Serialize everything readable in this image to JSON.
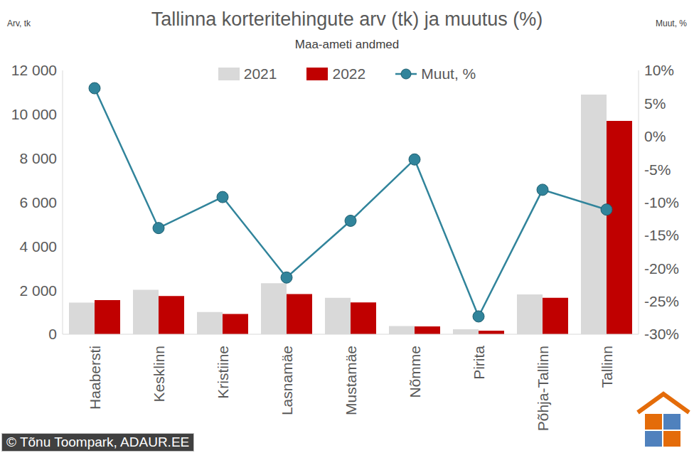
{
  "chart_data": {
    "type": "bar",
    "title": "Tallinna korteritehingute arv (tk) ja muutus (%)",
    "subtitle": "Maa-ameti andmed",
    "y_label": "Arv, tk",
    "y2_label": "Muut, %",
    "source": "© Tõnu Toompark, ADAUR.EE",
    "categories": [
      "Haabersti",
      "Kesklinn",
      "Kristiine",
      "Lasnamäe",
      "Mustamäe",
      "Nõmme",
      "Pirita",
      "Põhja-Tallinn",
      "Tallinn"
    ],
    "series": [
      {
        "name": "2021",
        "color": "#d9d9d9",
        "values": [
          1440,
          2020,
          1010,
          2320,
          1660,
          370,
          230,
          1810,
          10900
        ]
      },
      {
        "name": "2022",
        "color": "#c00000",
        "values": [
          1550,
          1740,
          920,
          1830,
          1450,
          355,
          165,
          1660,
          9700
        ]
      },
      {
        "name": "Muut, %",
        "type": "line",
        "axis": "y2",
        "color": "#31849b",
        "marker": "circle",
        "values": [
          7.3,
          -13.9,
          -9.2,
          -21.4,
          -12.8,
          -3.5,
          -27.3,
          -8.1,
          -11.1
        ]
      }
    ],
    "ylim": [
      0,
      12000
    ],
    "yticks": [
      0,
      {
        "value": 2000,
        "label": "2 000"
      },
      {
        "value": 4000,
        "label": "4 000"
      },
      {
        "value": 6000,
        "label": "6 000"
      },
      {
        "value": 8000,
        "label": "8 000"
      },
      {
        "value": 10000,
        "label": "10 000"
      },
      {
        "value": 12000,
        "label": "12 000"
      }
    ],
    "y2lim": [
      -30,
      10
    ],
    "y2ticks": [
      {
        "value": -30,
        "label": "-30%"
      },
      {
        "value": -25,
        "label": "-25%"
      },
      {
        "value": -20,
        "label": "-20%"
      },
      {
        "value": -15,
        "label": "-15%"
      },
      {
        "value": -10,
        "label": "-10%"
      },
      {
        "value": -5,
        "label": "-5%"
      },
      {
        "value": 0,
        "label": "0%"
      },
      {
        "value": 5,
        "label": "5%"
      },
      {
        "value": 10,
        "label": "10%"
      }
    ],
    "grid": false,
    "legend": "top"
  }
}
